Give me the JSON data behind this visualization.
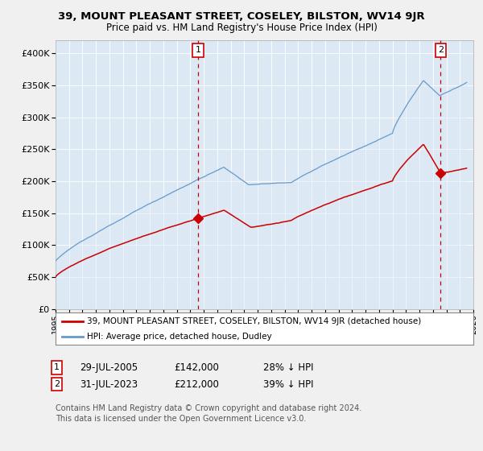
{
  "title1": "39, MOUNT PLEASANT STREET, COSELEY, BILSTON, WV14 9JR",
  "title2": "Price paid vs. HM Land Registry's House Price Index (HPI)",
  "ytick_values": [
    0,
    50000,
    100000,
    150000,
    200000,
    250000,
    300000,
    350000,
    400000
  ],
  "ylim": [
    0,
    420000
  ],
  "x_start_year": 1995,
  "x_end_year": 2026,
  "sale1_date": 2005.57,
  "sale1_price": 142000,
  "sale2_date": 2023.58,
  "sale2_price": 212000,
  "legend_line1": "39, MOUNT PLEASANT STREET, COSELEY, BILSTON, WV14 9JR (detached house)",
  "legend_line2": "HPI: Average price, detached house, Dudley",
  "table_row1": [
    "1",
    "29-JUL-2005",
    "£142,000",
    "28% ↓ HPI"
  ],
  "table_row2": [
    "2",
    "31-JUL-2023",
    "£212,000",
    "39% ↓ HPI"
  ],
  "footer1": "Contains HM Land Registry data © Crown copyright and database right 2024.",
  "footer2": "This data is licensed under the Open Government Licence v3.0.",
  "line_color_red": "#cc0000",
  "line_color_blue": "#6699cc",
  "fill_color_blue": "#dce9f5",
  "bg_color": "#f0f0f0",
  "plot_bg_color": "#dce9f5",
  "grid_color": "#aabbcc"
}
